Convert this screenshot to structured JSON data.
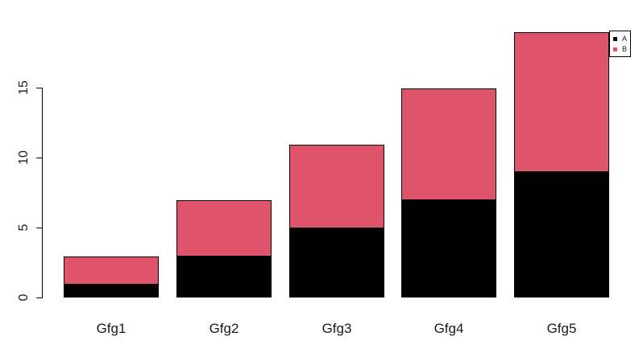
{
  "chart_data": {
    "type": "bar",
    "stacked": true,
    "title": "",
    "xlabel": "",
    "ylabel": "",
    "categories": [
      "Gfg1",
      "Gfg2",
      "Gfg3",
      "Gfg4",
      "Gfg5"
    ],
    "series": [
      {
        "name": "A",
        "color": "#000000",
        "values": [
          1,
          3,
          5,
          7,
          9
        ]
      },
      {
        "name": "B",
        "color": "#DF536B",
        "values": [
          2,
          4,
          6,
          8,
          10
        ]
      }
    ],
    "totals": [
      3,
      7,
      11,
      15,
      19
    ],
    "y_ticks": [
      0,
      5,
      10,
      15
    ],
    "ylim": [
      0,
      19
    ],
    "grid": false,
    "legend": {
      "position": "top-right",
      "entries": [
        {
          "label": "A",
          "color": "#000000"
        },
        {
          "label": "B",
          "color": "#DF536B"
        }
      ]
    }
  },
  "colors": {
    "background": "#ffffff",
    "axis": "#000000",
    "text": "#1a1a1a"
  }
}
